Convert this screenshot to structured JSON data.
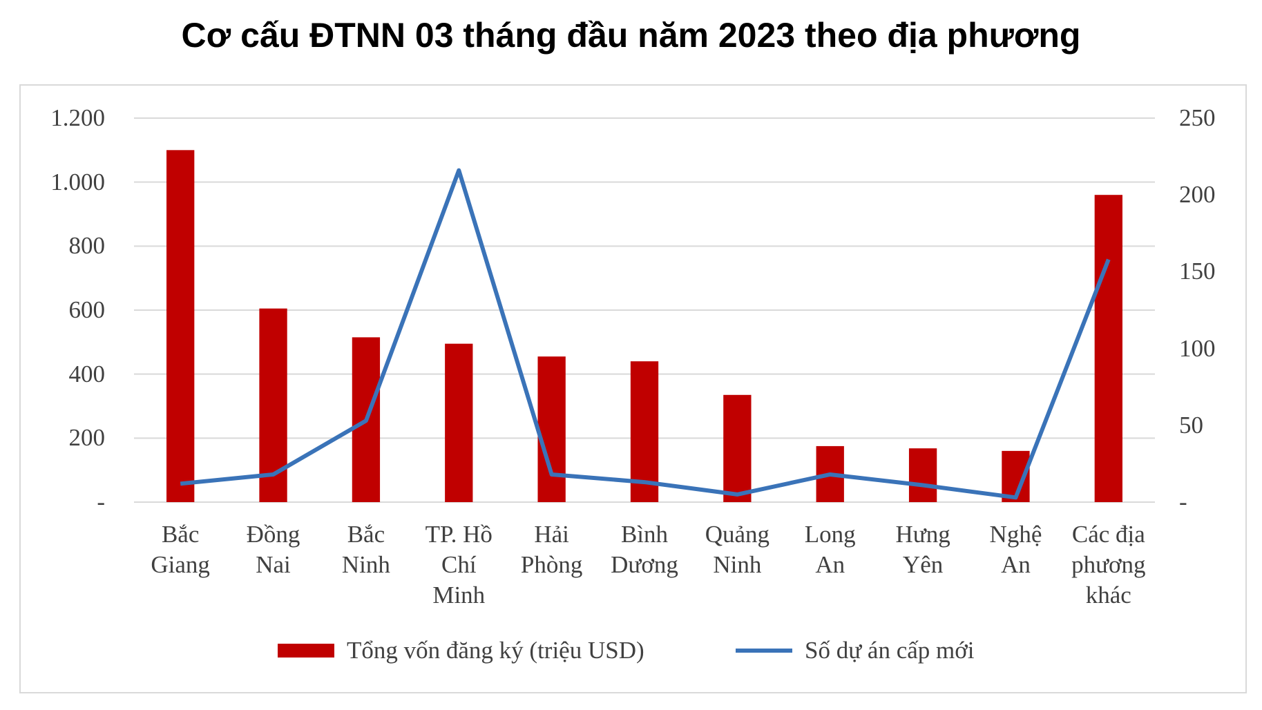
{
  "chart_data": {
    "type": "bar",
    "title": "Cơ cấu ĐTNN 03 tháng đầu năm 2023 theo địa phương",
    "categories": [
      "Bắc Giang",
      "Đồng Nai",
      "Bắc Ninh",
      "TP. Hồ Chí Minh",
      "Hải Phòng",
      "Bình Dương",
      "Quảng Ninh",
      "Long An",
      "Hưng Yên",
      "Nghệ An",
      "Các địa phương khác"
    ],
    "series": [
      {
        "name": "Tổng vốn đăng ký (triệu USD)",
        "color": "#c00000",
        "values": [
          1100,
          605,
          515,
          495,
          455,
          440,
          335,
          175,
          168,
          160,
          960
        ]
      },
      {
        "name": "Số dự án cấp mới",
        "type": "line",
        "axis": "y2",
        "color": "#3a73b8",
        "values": [
          12,
          18,
          53,
          216,
          18,
          13,
          5,
          18,
          11,
          3,
          158
        ]
      }
    ],
    "ylim": [
      0,
      1200
    ],
    "yticks": [
      {
        "value": 0,
        "label": "-"
      },
      200,
      400,
      600,
      800,
      {
        "value": 1000,
        "label": "1.000"
      },
      {
        "value": 1200,
        "label": "1.200"
      }
    ],
    "y2lim": [
      0,
      250
    ],
    "y2ticks": [
      {
        "value": 0,
        "label": "-"
      },
      50,
      100,
      150,
      200,
      250
    ],
    "grid": true
  }
}
